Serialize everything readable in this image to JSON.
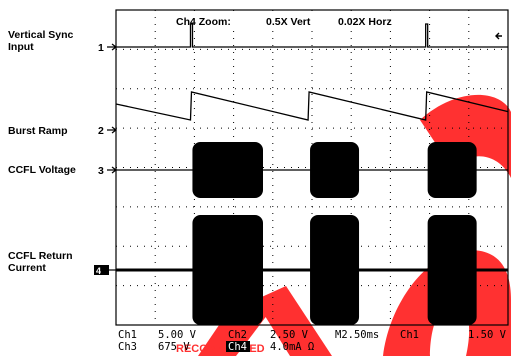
{
  "chart_data": {
    "type": "line",
    "title": "Ch4 Zoom:",
    "zoom": {
      "vert": "0.5X Vert",
      "horz": "0.02X Horz"
    },
    "grid": true,
    "x_divisions": 10,
    "y_divisions": 8,
    "series": [
      {
        "name": "Vertical Sync\nInput",
        "ref_marker": "1",
        "shape": "sync pulse",
        "pulse_times_div": [
          1.9,
          7.9
        ]
      },
      {
        "name": "Burst Ramp",
        "ref_marker": "2",
        "shape": "sawtooth",
        "reset_times_div": [
          1.9,
          4.9,
          7.9
        ]
      },
      {
        "name": "CCFL Voltage",
        "ref_marker": "3",
        "shape": "burst",
        "bursts_div": [
          [
            1.95,
            3.75
          ],
          [
            4.95,
            6.2
          ],
          [
            7.95,
            9.2
          ]
        ]
      },
      {
        "name": "CCFL Return\nCurrent",
        "ref_marker": "4",
        "shape": "burst",
        "bursts_div": [
          [
            1.95,
            3.75
          ],
          [
            4.95,
            6.2
          ],
          [
            7.95,
            9.2
          ]
        ]
      }
    ],
    "readout": [
      [
        "Ch1",
        "5.00 V",
        "Ch2",
        "2.50 V",
        "M2.50ms",
        "Ch1",
        "1.50 V"
      ],
      [
        "Ch3",
        "675 V",
        "Ch4",
        "4.0mA Ω"
      ]
    ]
  },
  "watermark": "RECOMMENDED"
}
